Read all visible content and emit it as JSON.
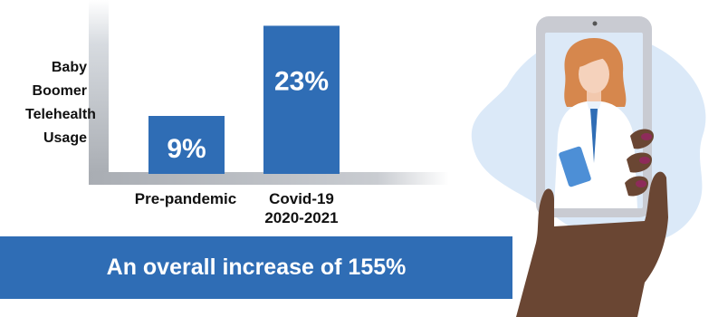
{
  "chart_data": {
    "type": "bar",
    "categories": [
      [
        "Pre-pandemic"
      ],
      [
        "Covid-19",
        "2020-2021"
      ]
    ],
    "values": [
      9,
      23
    ],
    "value_labels": [
      "9%",
      "23%"
    ],
    "ylabel_lines": [
      "Baby",
      "Boomer",
      "Telehealth",
      "Usage"
    ],
    "ylim": [
      0,
      27
    ],
    "grid": false,
    "bar_color": "#2f6db5"
  },
  "banner": {
    "text": "An overall increase of 155%",
    "color": "#2f6db5"
  },
  "illustration": {
    "subject": "hand-holding-phone-with-doctor-video-call",
    "blob_color": "#dbe9f8",
    "skin_color": "#6a4633",
    "phone_color": "#c9cbd2",
    "nail_color": "#8e2b5a"
  }
}
